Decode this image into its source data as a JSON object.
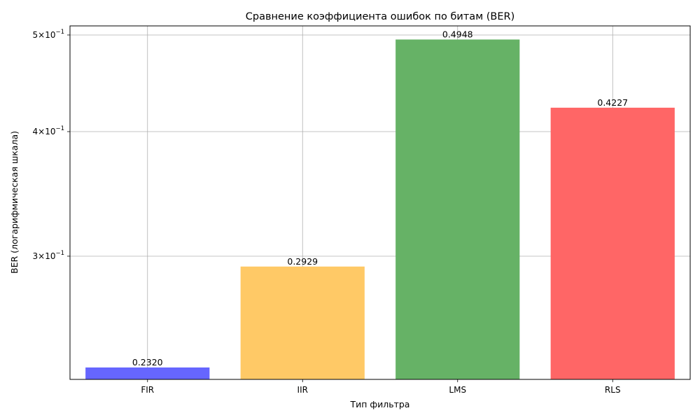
{
  "chart_data": {
    "type": "bar",
    "title": "Сравнение коэффициента ошибок по битам (BER)",
    "xlabel": "Тип фильтра",
    "ylabel": "BER (логарифмическая шкала)",
    "yscale": "log",
    "ylim": [
      0.2257,
      0.5106
    ],
    "grid": true,
    "categories": [
      "FIR",
      "IIR",
      "LMS",
      "RLS"
    ],
    "values": [
      0.232,
      0.2929,
      0.4948,
      0.4227
    ],
    "value_labels": [
      "0.2320",
      "0.2929",
      "0.4948",
      "0.4227"
    ],
    "colors": [
      "#6666ff",
      "#ffc966",
      "#66b266",
      "#ff6666"
    ],
    "yticks": [
      {
        "value": 0.3,
        "mantissa": "3",
        "exponent": "−1"
      },
      {
        "value": 0.4,
        "mantissa": "4",
        "exponent": "−1"
      },
      {
        "value": 0.5,
        "mantissa": "5",
        "exponent": "−1"
      }
    ]
  }
}
